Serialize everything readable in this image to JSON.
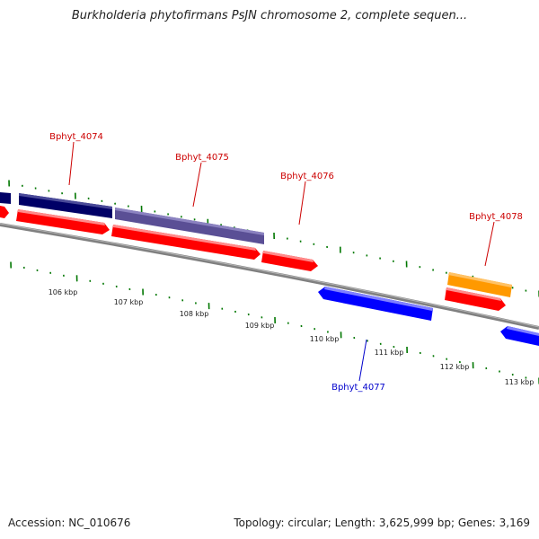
{
  "title": "Burkholderia phytofirmans PsJN chromosome 2, complete sequen...",
  "accession": "Accession: NC_010676",
  "summary": "Topology: circular; Length: 3,625,999 bp; Genes: 3,169",
  "colors": {
    "backbone": "#808080",
    "forward_gene": "#ff0000",
    "reverse_gene": "#0000ff",
    "cds_navy": "#000066",
    "cds_slate": "#5a4f95",
    "cds_orange": "#ff9900",
    "tick": "#007700",
    "label_forward": "#cc0000",
    "label_reverse": "#0000cc"
  },
  "scale_labels": [
    "106 kbp",
    "107 kbp",
    "108 kbp",
    "109 kbp",
    "110 kbp",
    "111 kbp",
    "112 kbp",
    "113 kbp"
  ],
  "gene_labels": [
    {
      "id": "g4074",
      "text": "Bphyt_4074",
      "strand": "forward"
    },
    {
      "id": "g4075",
      "text": "Bphyt_4075",
      "strand": "forward"
    },
    {
      "id": "g4076",
      "text": "Bphyt_4076",
      "strand": "forward"
    },
    {
      "id": "g4078",
      "text": "Bphyt_4078",
      "strand": "forward"
    },
    {
      "id": "g4077",
      "text": "Bphyt_4077",
      "strand": "reverse"
    }
  ]
}
